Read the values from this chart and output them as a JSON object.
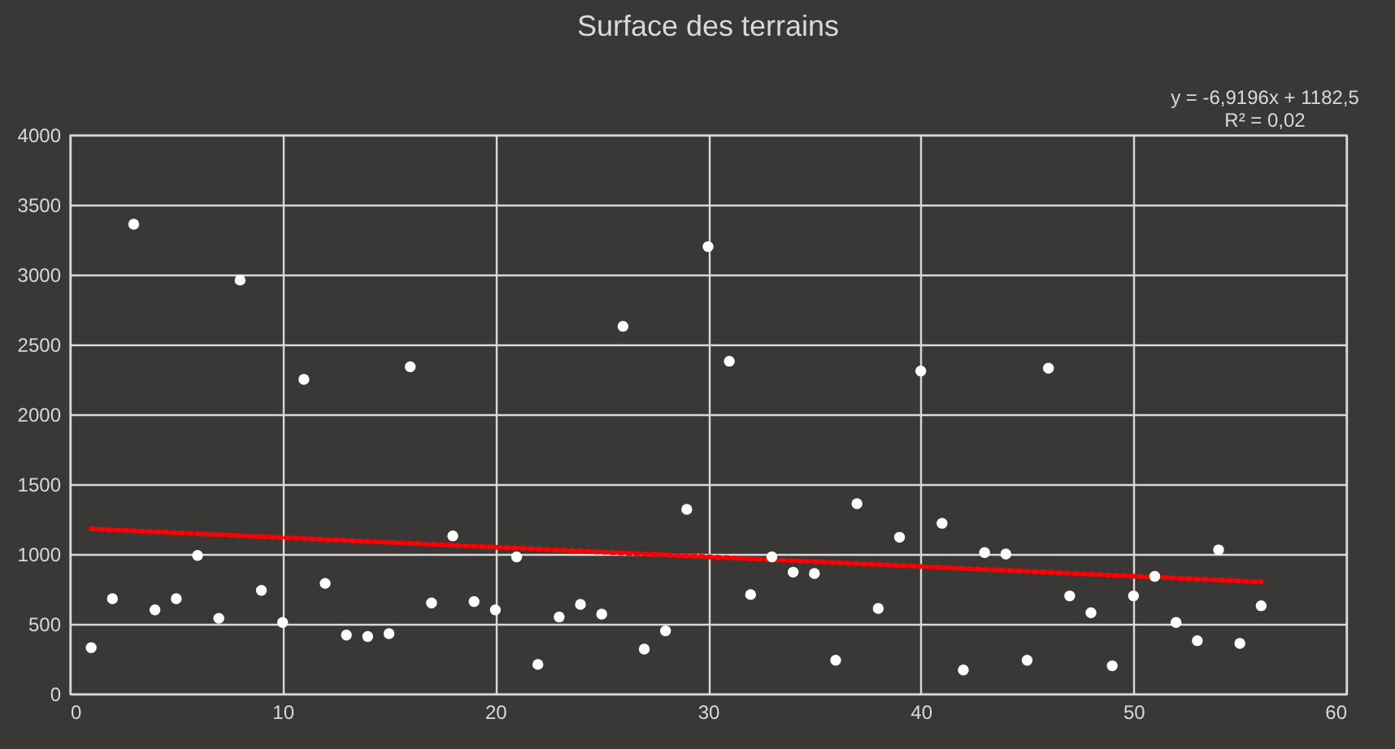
{
  "chart_data": {
    "type": "scatter",
    "title": "Surface des terrains",
    "annotations": [
      "y = -6,9196x + 1182,5",
      "R² = 0,02"
    ],
    "xlim": [
      0,
      60
    ],
    "xticks": [
      0,
      10,
      20,
      30,
      40,
      50,
      60
    ],
    "ylim": [
      0,
      4000
    ],
    "yticks": [
      0,
      500,
      1000,
      1500,
      2000,
      2500,
      3000,
      3500,
      4000
    ],
    "grid": true,
    "series": [
      {
        "type": "scatter",
        "marker": "circle",
        "color": "#ffffff",
        "x": [
          1,
          2,
          3,
          4,
          5,
          6,
          7,
          8,
          9,
          10,
          11,
          12,
          13,
          14,
          15,
          16,
          17,
          18,
          19,
          20,
          21,
          22,
          23,
          24,
          25,
          26,
          27,
          28,
          29,
          30,
          31,
          32,
          33,
          34,
          35,
          36,
          37,
          38,
          39,
          40,
          41,
          42,
          43,
          44,
          45,
          46,
          47,
          48,
          49,
          50,
          51,
          52,
          53,
          54,
          55,
          56
        ],
        "values": [
          330,
          680,
          3360,
          600,
          680,
          990,
          540,
          2960,
          740,
          510,
          2250,
          790,
          420,
          410,
          430,
          2340,
          650,
          1130,
          660,
          600,
          980,
          210,
          550,
          640,
          570,
          2630,
          320,
          450,
          1320,
          3200,
          2380,
          710,
          980,
          870,
          860,
          240,
          1360,
          610,
          1120,
          2310,
          1220,
          170,
          1010,
          1000,
          240,
          2330,
          700,
          580,
          200,
          700,
          840,
          510,
          380,
          1030,
          360,
          630
        ]
      },
      {
        "type": "line",
        "color": "#ff0000",
        "line_style": "dotted",
        "x": [
          1,
          56
        ],
        "values": [
          1180,
          800
        ]
      }
    ]
  }
}
